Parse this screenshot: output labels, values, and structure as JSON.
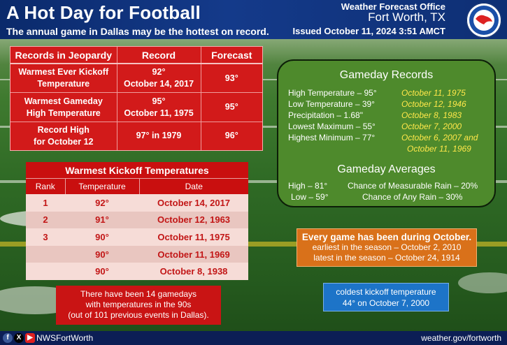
{
  "header": {
    "title": "A Hot Day for Football",
    "subtitle": "The annual game in Dallas may be the hottest on record.",
    "office": "Weather Forecast Office",
    "city": "Fort Worth, TX",
    "issued": "Issued October 11, 2024 3:51 AMCT",
    "logo_icon": "nws-logo"
  },
  "records_table": {
    "headers": [
      "Records in Jeopardy",
      "Record",
      "Forecast"
    ],
    "rows": [
      {
        "label_1": "Warmest Ever Kickoff",
        "label_2": "Temperature",
        "record_1": "92°",
        "record_2": "October 14, 2017",
        "forecast": "93°"
      },
      {
        "label_1": "Warmest Gameday",
        "label_2": "High Temperature",
        "record_1": "95°",
        "record_2": "October 11, 1975",
        "forecast": "95°"
      },
      {
        "label_1": "Record High",
        "label_2": "for October 12",
        "record_1": "97° in 1979",
        "record_2": "",
        "forecast": "96°"
      }
    ]
  },
  "kickoff_table": {
    "title": "Warmest Kickoff Temperatures",
    "headers": [
      "Rank",
      "Temperature",
      "Date"
    ],
    "rows": [
      {
        "rank": "1",
        "temp": "92°",
        "date": "October 14, 2017"
      },
      {
        "rank": "2",
        "temp": "91°",
        "date": "October 12, 1963"
      },
      {
        "rank": "3",
        "temp": "90°",
        "date": "October 11, 1975"
      },
      {
        "rank": "",
        "temp": "90°",
        "date": "October 11, 1969"
      },
      {
        "rank": "",
        "temp": "90°",
        "date": "October 8, 1938"
      }
    ]
  },
  "note_90s": {
    "line_1": "There have been 14 gamedays",
    "line_2": "with temperatures in the 90s",
    "line_3": "(out of 101 previous events in Dallas)."
  },
  "gameday_records": {
    "title": "Gameday Records",
    "items": [
      {
        "label": "High Temperature – 95°",
        "date": "October 11, 1975"
      },
      {
        "label": "Low Temperature – 39°",
        "date": "October 12, 1946"
      },
      {
        "label": "Precipitation – 1.68\"",
        "date": "October 8, 1983"
      },
      {
        "label": "Lowest Maximum – 55°",
        "date": "October 7, 2000"
      },
      {
        "label": "Highest Minimum – 77°",
        "date": "October 6, 2007 and"
      }
    ],
    "extra_date": "October 11, 1969"
  },
  "gameday_averages": {
    "title": "Gameday Averages",
    "high": "High – 81°",
    "low": "Low – 59°",
    "rain_measurable": "Chance of Measurable Rain – 20%",
    "rain_any": "Chance of Any Rain – 30%"
  },
  "october_box": {
    "headline": "Every game has been during October.",
    "earliest": "earliest in the season – October 2, 2010",
    "latest": "latest in the season – October 24, 1914"
  },
  "coldest_box": {
    "line_1": "coldest kickoff temperature",
    "line_2": "44° on October 7, 2000"
  },
  "footer": {
    "handle": "NWSFortWorth",
    "url": "weather.gov/fortworth",
    "social_icons": [
      "facebook-icon",
      "x-icon",
      "youtube-icon"
    ]
  },
  "colors": {
    "header_blue": "#143a8a",
    "record_red": "#d21a1a",
    "panel_green": "#4e8a2c",
    "orange": "#d9711a",
    "blue_box": "#1d74c8",
    "date_yellow": "#ffe84a"
  }
}
